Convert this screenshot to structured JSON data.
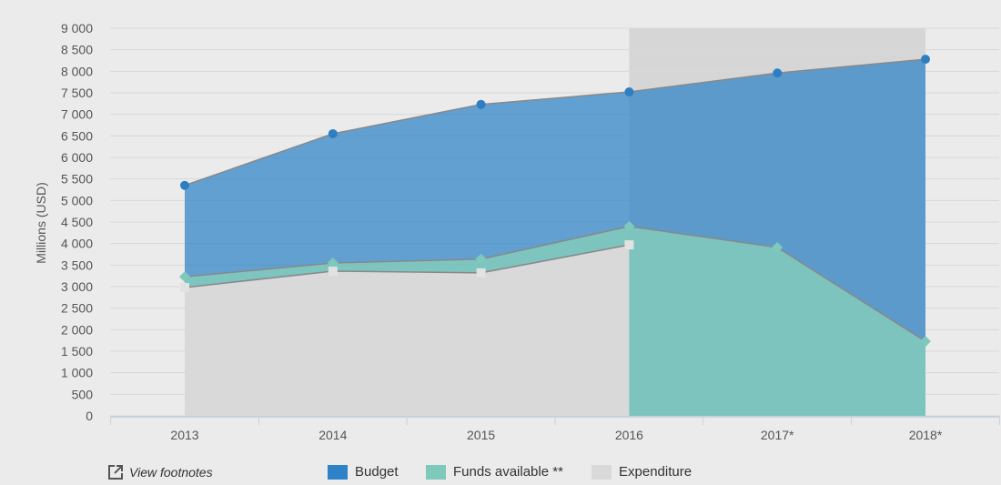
{
  "chart_data": {
    "type": "area",
    "title": "",
    "xlabel": "",
    "ylabel": "Millions (USD)",
    "ylim": [
      0,
      9000
    ],
    "ytick_step": 500,
    "ytick_labels": [
      "0",
      "500",
      "1 000",
      "1 500",
      "2 000",
      "2 500",
      "3 000",
      "3 500",
      "4 000",
      "4 500",
      "5 000",
      "5 500",
      "6 000",
      "6 500",
      "7 000",
      "7 500",
      "8 000",
      "8 500",
      "9 000"
    ],
    "categories": [
      "2013",
      "2014",
      "2015",
      "2016",
      "2017*",
      "2018*"
    ],
    "grid": true,
    "highlighted_range": [
      "2016",
      "2018*"
    ],
    "legend_placement": "bottom",
    "series": [
      {
        "name": "Budget",
        "color": "#2e82c8",
        "marker": "circle",
        "values": [
          5350,
          6550,
          7230,
          7520,
          7960,
          8280
        ]
      },
      {
        "name": "Funds available **",
        "color": "#7fc8bc",
        "marker": "diamond",
        "values": [
          3230,
          3550,
          3640,
          4400,
          3910,
          1730
        ]
      },
      {
        "name": "Expenditure",
        "color": "#d9d9d9",
        "marker": "square",
        "values": [
          2980,
          3360,
          3320,
          3970,
          null,
          null
        ]
      }
    ]
  },
  "footer": {
    "footnotes_label": "View footnotes",
    "footnotes_icon": "external-link-icon"
  }
}
